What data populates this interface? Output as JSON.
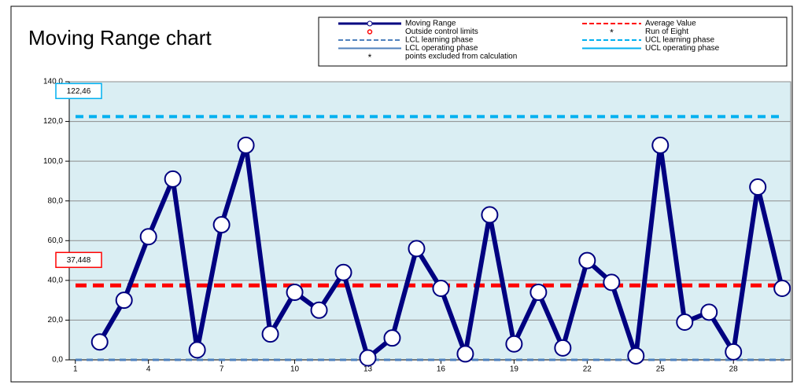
{
  "chart_data": {
    "type": "line",
    "title": "Moving Range chart",
    "x": [
      2,
      3,
      4,
      5,
      6,
      7,
      8,
      9,
      10,
      11,
      12,
      13,
      14,
      15,
      16,
      17,
      18,
      19,
      20,
      21,
      22,
      23,
      24,
      25,
      26,
      27,
      28,
      29,
      30
    ],
    "series": [
      {
        "name": "Moving Range",
        "color": "#000080",
        "style": "line-circle",
        "values": [
          9,
          30,
          62,
          91,
          5,
          68,
          108,
          13,
          34,
          25,
          44,
          1,
          11,
          56,
          36,
          3,
          73,
          8,
          34,
          6,
          50,
          39,
          2,
          108,
          19,
          24,
          4,
          87,
          36
        ]
      }
    ],
    "reference_lines": [
      {
        "name": "Average Value",
        "value": 37.448,
        "label": "37,448",
        "color": "#ff0000",
        "style": "dashed"
      },
      {
        "name": "UCL learning phase",
        "value": 122.46,
        "label": "122,46",
        "color": "#00b0f0",
        "style": "dashed"
      },
      {
        "name": "LCL learning phase",
        "value": 0,
        "color": "#4f81bd",
        "style": "dashed"
      }
    ],
    "legend_extra": [
      {
        "name": "Outside control limits",
        "color": "#ff0000",
        "style": "circle"
      },
      {
        "name": "Run of Eight",
        "color": "#f79646",
        "style": "star"
      },
      {
        "name": "LCL operating phase",
        "color": "#4f81bd",
        "style": "solid"
      },
      {
        "name": "UCL operating phase",
        "color": "#00b0f0",
        "style": "solid"
      },
      {
        "name": "points excluded from calculation",
        "color": "#00b050",
        "style": "star"
      }
    ],
    "xlim": [
      0.75,
      30.35
    ],
    "xticks": [
      1,
      4,
      7,
      10,
      13,
      16,
      19,
      22,
      25,
      28
    ],
    "ylim": [
      0,
      140
    ],
    "yticks": [
      {
        "value": 0,
        "label": "0,0"
      },
      {
        "value": 20,
        "label": "20,0"
      },
      {
        "value": 40,
        "label": "40,0"
      },
      {
        "value": 60,
        "label": "60,0"
      },
      {
        "value": 80,
        "label": "80,0"
      },
      {
        "value": 100,
        "label": "100,0"
      },
      {
        "value": 120,
        "label": "120,0"
      },
      {
        "value": 140,
        "label": "140,0"
      }
    ],
    "grid": true,
    "plot_background": "#daeef3"
  }
}
